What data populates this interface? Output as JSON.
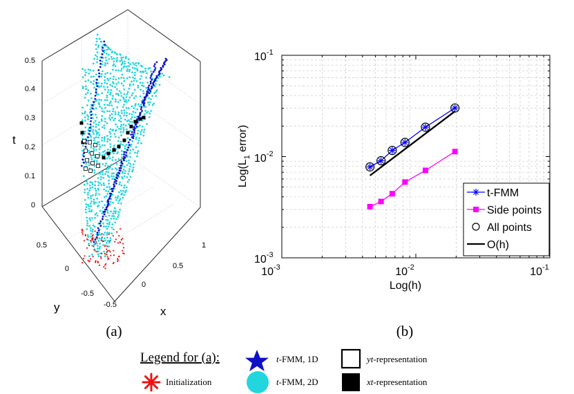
{
  "panel_a": {
    "caption": "(a)",
    "axis_labels": {
      "t": "t",
      "y": "y",
      "x": "x"
    },
    "t_ticks": [
      "0.5",
      "0.4",
      "0.3",
      "0.2",
      "0.1",
      "0"
    ],
    "y_ticks": [
      "0.5",
      "0",
      "-0.5"
    ],
    "x_ticks": [
      "-0.5",
      "0",
      "0.5",
      "1"
    ]
  },
  "panel_b": {
    "caption": "(b)",
    "legend": [
      "t-FMM",
      "Side points",
      "All points",
      "O(h)"
    ]
  },
  "legend_a": {
    "title": "Legend for (a):",
    "items": [
      {
        "symbol": "t",
        "text": "-FMM, 1D"
      },
      {
        "symbol": "yt",
        "text": "-representation"
      },
      {
        "symbol": "",
        "text": "Initialization"
      },
      {
        "symbol": "t",
        "text": "-FMM, 2D"
      },
      {
        "symbol": "xt",
        "text": "-representation"
      }
    ]
  },
  "colors": {
    "tfmm_1d": "#1010c8",
    "tfmm_2d": "#22d6dd",
    "initialization": "#ee1111",
    "xt_representation": "#000000",
    "side_points": "#ff00ff"
  },
  "chart_data": [
    {
      "type": "scatter",
      "dimensions": 3,
      "title": "",
      "xlabel": "x",
      "ylabel": "y",
      "zlabel": "t",
      "xlim": [
        -0.5,
        1
      ],
      "ylim": [
        -0.5,
        0.5
      ],
      "zlim": [
        0,
        0.5
      ],
      "xticks": [
        "-0.5",
        "0",
        "0.5",
        "1"
      ],
      "yticks": [
        "-0.5",
        "0",
        "0.5"
      ],
      "zticks": [
        "0",
        "0.1",
        "0.2",
        "0.3",
        "0.4",
        "0.5"
      ],
      "series": [
        "t-FMM, 1D",
        "t-FMM, 2D",
        "Initialization",
        "yt-representation",
        "xt-representation"
      ]
    },
    {
      "type": "line",
      "xscale": "log",
      "yscale": "log",
      "title": "",
      "xlabel": "Log(h)",
      "ylabel": "Log(L",
      "ylabel_sub": "1",
      "ylabel_end": " error)",
      "xlim": [
        0.001,
        0.1
      ],
      "ylim": [
        0.001,
        0.1
      ],
      "xticks": [
        {
          "base": "10",
          "exp": "-3"
        },
        {
          "base": "10",
          "exp": "-2"
        },
        {
          "base": "10",
          "exp": "-1"
        }
      ],
      "yticks": [
        {
          "base": "10",
          "exp": "-3"
        },
        {
          "base": "10",
          "exp": "-2"
        },
        {
          "base": "10",
          "exp": "-1"
        }
      ],
      "grid": true,
      "legend_position": "bottom-right",
      "series": [
        {
          "name": "t-FMM",
          "color": "#0000ff",
          "marker": "asterisk",
          "x": [
            0.00455,
            0.0055,
            0.00667,
            0.0083,
            0.0118,
            0.0196
          ],
          "y": [
            0.0079,
            0.0091,
            0.0115,
            0.0138,
            0.0195,
            0.0302
          ]
        },
        {
          "name": "Side points",
          "color": "#ff00ff",
          "marker": "square",
          "x": [
            0.00455,
            0.0055,
            0.00667,
            0.0083,
            0.0118,
            0.0196
          ],
          "y": [
            0.0032,
            0.0036,
            0.0043,
            0.0056,
            0.0073,
            0.0112
          ]
        },
        {
          "name": "All points",
          "color": "#000000",
          "marker": "circle",
          "x": [
            0.00455,
            0.0055,
            0.00667,
            0.0083,
            0.0118,
            0.0196
          ],
          "y": [
            0.0079,
            0.0091,
            0.0115,
            0.0138,
            0.0195,
            0.0302
          ]
        },
        {
          "name": "O(h)",
          "color": "#000000",
          "marker": "none",
          "x": [
            0.00455,
            0.0196
          ],
          "y": [
            0.0065,
            0.028
          ]
        }
      ]
    }
  ]
}
